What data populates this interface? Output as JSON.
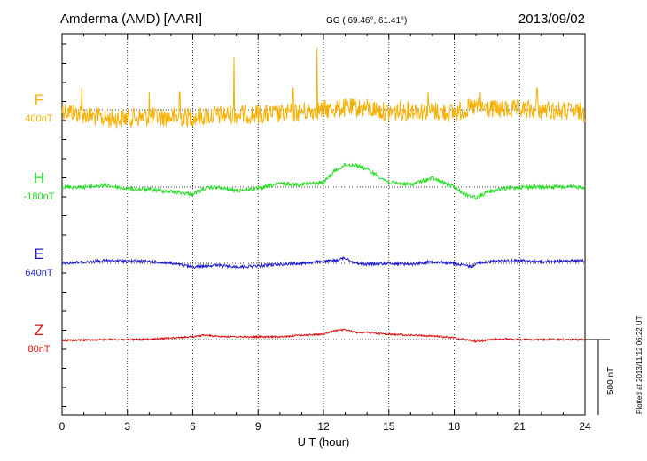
{
  "header": {
    "station": "Amderma (AMD)  [AARI]",
    "coords": "GG ( 69.46°,  61.41°)",
    "date": "2013/09/02"
  },
  "side_note": "Plotted at 2013/11/12 06:22 UT",
  "chart_data": {
    "type": "line",
    "xlabel": "U T (hour)",
    "xlim": [
      0,
      24
    ],
    "xticks": [
      "0",
      "3",
      "6",
      "9",
      "12",
      "15",
      "18",
      "21",
      "24"
    ],
    "scale_bar": "500 nT",
    "grid": true,
    "series": [
      {
        "name": "F",
        "baseline": "400nT",
        "color": "#f5b000",
        "profile": [
          [
            0,
            0
          ],
          [
            2,
            10
          ],
          [
            4,
            8
          ],
          [
            6,
            8
          ],
          [
            8,
            5
          ],
          [
            10,
            5
          ],
          [
            11,
            2
          ],
          [
            12,
            0
          ],
          [
            13,
            -2
          ],
          [
            14,
            -2
          ],
          [
            15,
            3
          ],
          [
            16,
            0
          ],
          [
            18,
            3
          ],
          [
            19,
            -3
          ],
          [
            20,
            0
          ],
          [
            22,
            0
          ],
          [
            24,
            3
          ]
        ],
        "spikes": [
          [
            7.9,
            -60
          ],
          [
            11.7,
            -70
          ],
          [
            0.9,
            -25
          ],
          [
            5.4,
            -20
          ],
          [
            10.6,
            -25
          ],
          [
            16.8,
            -20
          ],
          [
            19.2,
            -20
          ],
          [
            21.8,
            -25
          ],
          [
            4.0,
            -20
          ]
        ]
      },
      {
        "name": "H",
        "baseline": "-180nT",
        "color": "#22dd22",
        "profile": [
          [
            0,
            0
          ],
          [
            1,
            0
          ],
          [
            2,
            -2
          ],
          [
            3,
            2
          ],
          [
            4,
            3
          ],
          [
            5,
            5
          ],
          [
            6,
            8
          ],
          [
            6.5,
            2
          ],
          [
            7,
            0
          ],
          [
            8,
            4
          ],
          [
            9,
            2
          ],
          [
            10,
            -4
          ],
          [
            11,
            -3
          ],
          [
            12,
            -5
          ],
          [
            12.5,
            -18
          ],
          [
            13,
            -25
          ],
          [
            13.5,
            -25
          ],
          [
            14,
            -20
          ],
          [
            15,
            -5
          ],
          [
            16,
            -3
          ],
          [
            17,
            -10
          ],
          [
            18,
            0
          ],
          [
            18.5,
            8
          ],
          [
            19,
            12
          ],
          [
            19.5,
            6
          ],
          [
            20,
            3
          ],
          [
            21,
            0
          ],
          [
            24,
            0
          ]
        ]
      },
      {
        "name": "E",
        "baseline": "640nT",
        "color": "#1a1acc",
        "profile": [
          [
            0,
            0
          ],
          [
            2,
            -3
          ],
          [
            4,
            -2
          ],
          [
            5,
            0
          ],
          [
            6,
            4
          ],
          [
            7,
            2
          ],
          [
            8,
            4
          ],
          [
            9,
            3
          ],
          [
            10,
            1
          ],
          [
            11,
            0
          ],
          [
            12,
            -2
          ],
          [
            12.5,
            -3
          ],
          [
            13,
            -6
          ],
          [
            13.5,
            0
          ],
          [
            14,
            1
          ],
          [
            15,
            0
          ],
          [
            16,
            1
          ],
          [
            17,
            -2
          ],
          [
            18,
            0
          ],
          [
            18.8,
            4
          ],
          [
            19,
            0
          ],
          [
            20,
            -3
          ],
          [
            21,
            -3
          ],
          [
            22,
            -2
          ],
          [
            24,
            -3
          ]
        ]
      },
      {
        "name": "Z",
        "baseline": "80nT",
        "color": "#dd1111",
        "profile": [
          [
            0,
            1
          ],
          [
            2,
            0
          ],
          [
            4,
            0
          ],
          [
            5,
            -2
          ],
          [
            6,
            -3
          ],
          [
            6.5,
            -5
          ],
          [
            7,
            -4
          ],
          [
            8,
            -3
          ],
          [
            9,
            -3
          ],
          [
            10,
            -3
          ],
          [
            11,
            -5
          ],
          [
            12,
            -6
          ],
          [
            12.5,
            -10
          ],
          [
            13,
            -11
          ],
          [
            13.5,
            -8
          ],
          [
            14,
            -8
          ],
          [
            15,
            -6
          ],
          [
            16,
            -5
          ],
          [
            17,
            -4
          ],
          [
            18,
            -2
          ],
          [
            18.5,
            0
          ],
          [
            19,
            2
          ],
          [
            19.5,
            1
          ],
          [
            20,
            -1
          ],
          [
            21,
            0
          ],
          [
            24,
            0
          ]
        ]
      }
    ]
  }
}
